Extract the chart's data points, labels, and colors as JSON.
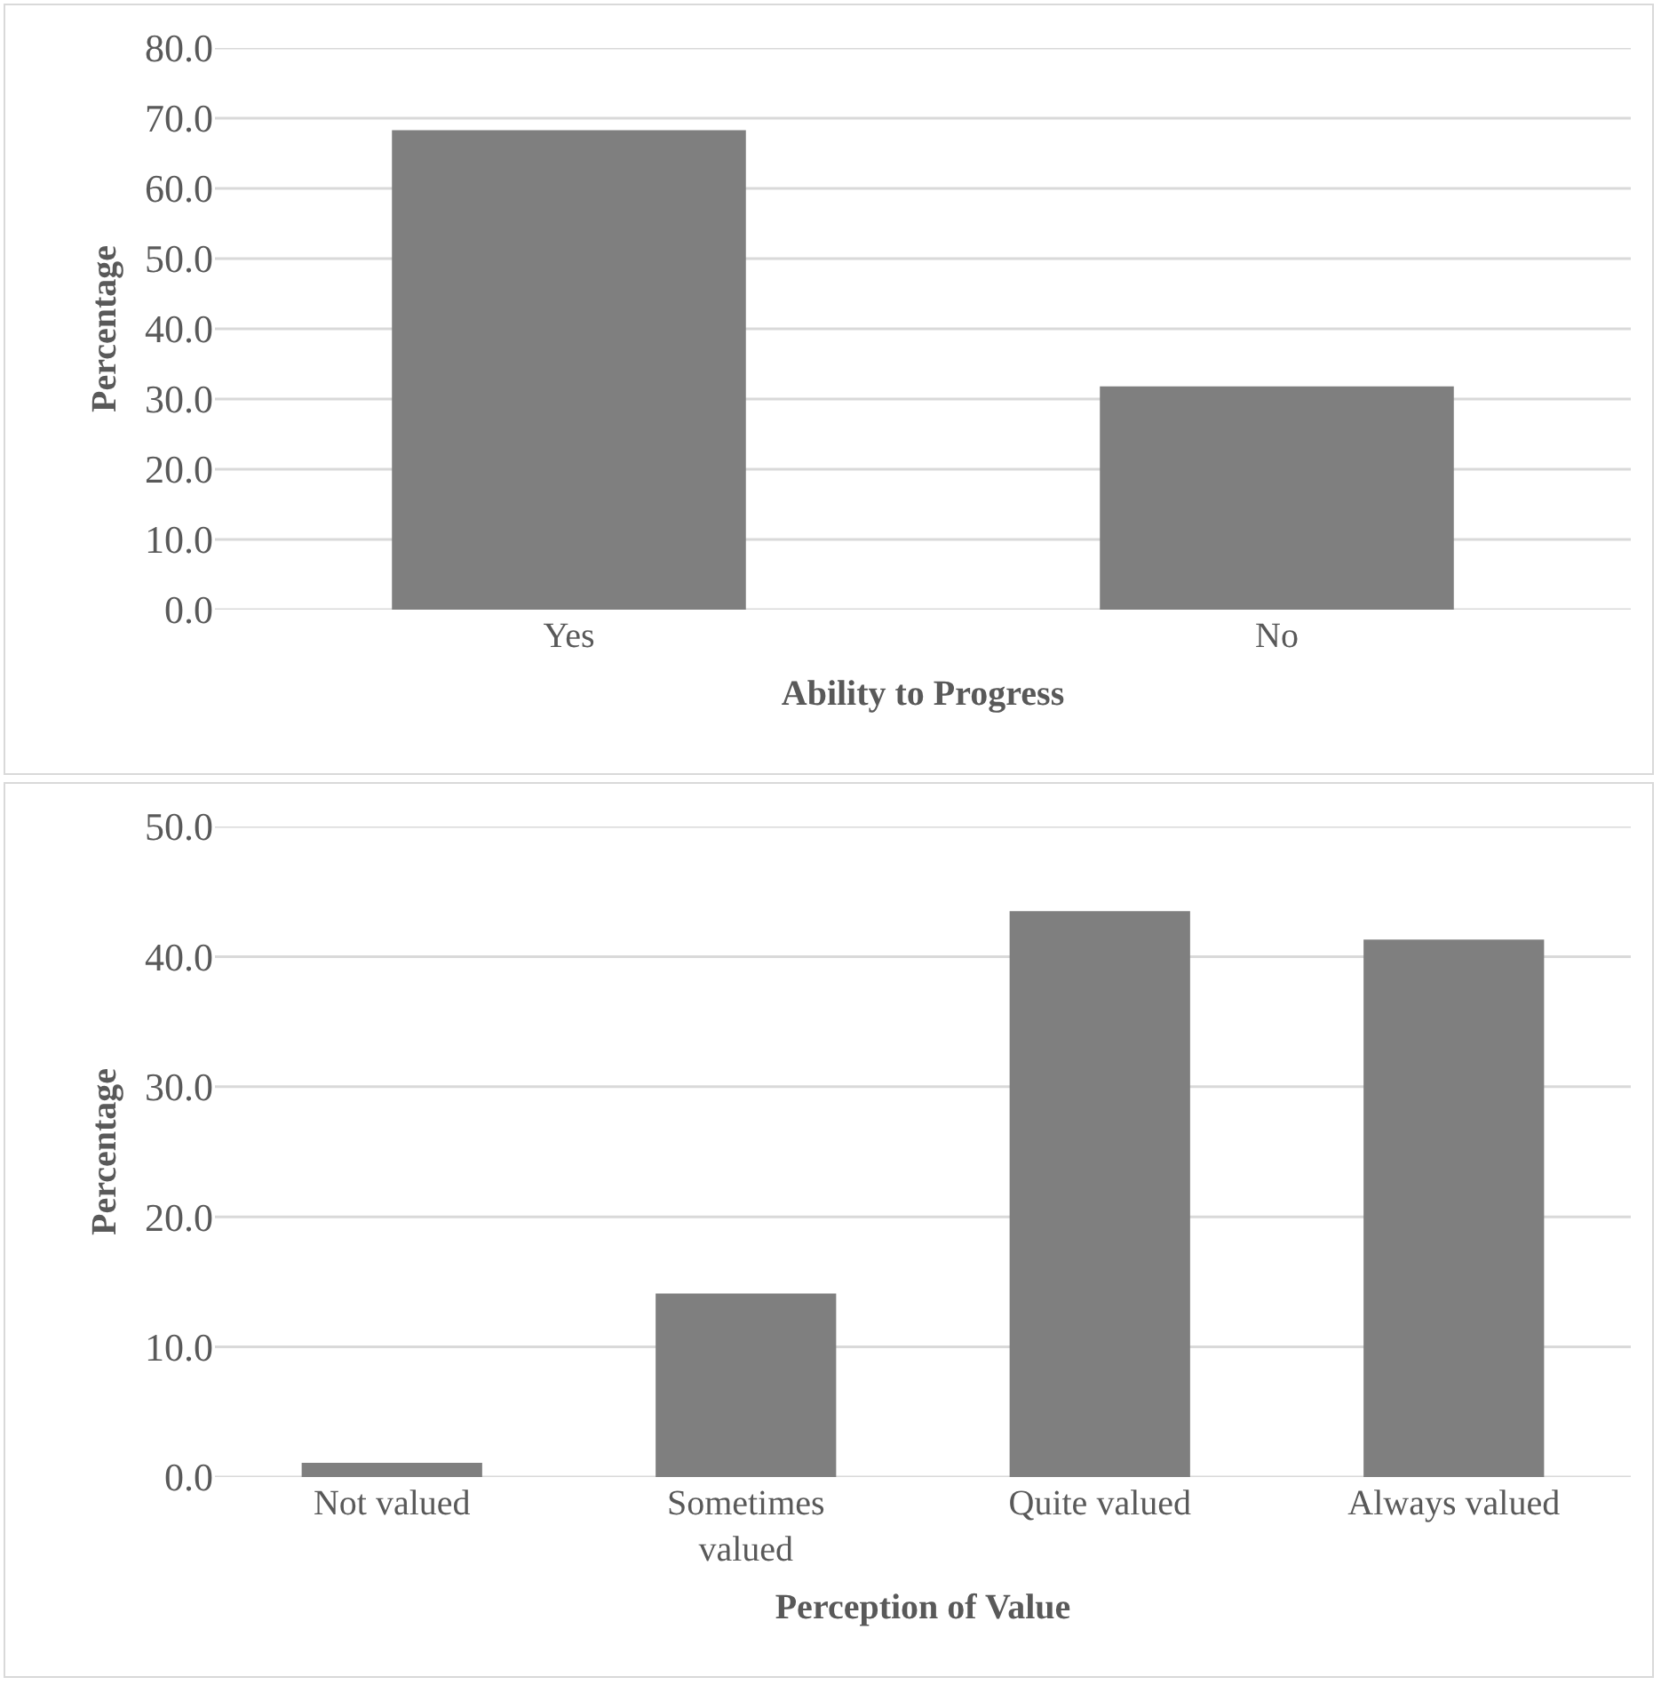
{
  "chart_data": [
    {
      "type": "bar",
      "xlabel": "Ability to Progress",
      "ylabel": "Percentage",
      "categories": [
        "Yes",
        "No"
      ],
      "values": [
        68.3,
        31.8
      ],
      "color": "#7f7f7f",
      "ylim": [
        0,
        80
      ],
      "yticks": [
        {
          "value": 0,
          "label": "0.0"
        },
        {
          "value": 10,
          "label": "10.0"
        },
        {
          "value": 20,
          "label": "20.0"
        },
        {
          "value": 30,
          "label": "30.0"
        },
        {
          "value": 40,
          "label": "40.0"
        },
        {
          "value": 50,
          "label": "50.0"
        },
        {
          "value": 60,
          "label": "60.0"
        },
        {
          "value": 70,
          "label": "70.0"
        },
        {
          "value": 80,
          "label": "80.0"
        }
      ],
      "grid": "y"
    },
    {
      "type": "bar",
      "xlabel": "Perception of Value",
      "ylabel": "Percentage",
      "categories": [
        "Not valued",
        "Sometimes valued",
        "Quite valued",
        "Always valued"
      ],
      "values": [
        1.1,
        14.1,
        43.5,
        41.3
      ],
      "color": "#7f7f7f",
      "ylim": [
        0,
        50
      ],
      "yticks": [
        {
          "value": 0,
          "label": "0.0"
        },
        {
          "value": 10,
          "label": "10.0"
        },
        {
          "value": 20,
          "label": "20.0"
        },
        {
          "value": 30,
          "label": "30.0"
        },
        {
          "value": 40,
          "label": "40.0"
        },
        {
          "value": 50,
          "label": "50.0"
        }
      ],
      "grid": "y"
    }
  ]
}
